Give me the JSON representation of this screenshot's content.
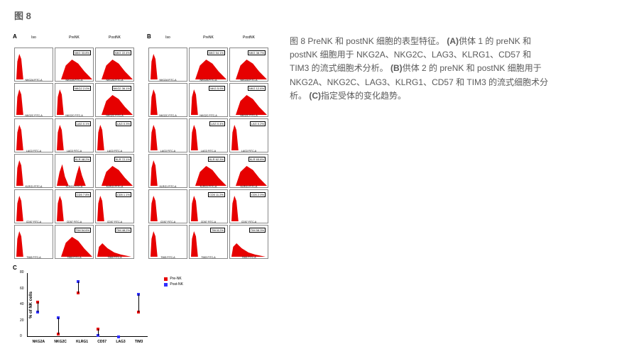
{
  "header": "图 8",
  "panelA": {
    "label": "A",
    "columns": [
      "Iso",
      "PreNK",
      "PostNK"
    ],
    "rows": [
      {
        "marker": "NKG2A",
        "gates": [
          "",
          "NKG 33.8%",
          "NKG 22.4%"
        ],
        "shapes": [
          "left",
          "shifted",
          "shifted"
        ]
      },
      {
        "marker": "NKG2C",
        "gates": [
          "",
          "NKG2 2.0%",
          "NKG2 36.1%"
        ],
        "shapes": [
          "left",
          "left",
          "shifted"
        ]
      },
      {
        "marker": "LAG3",
        "gates": [
          "",
          "LAG 0.1%",
          "LAG 0.3%"
        ],
        "shapes": [
          "left",
          "left",
          "left"
        ]
      },
      {
        "marker": "KLRG1",
        "gates": [
          "",
          "KLR 48.2%",
          "KLR 72.1%"
        ],
        "shapes": [
          "left",
          "double",
          "shifted"
        ]
      },
      {
        "marker": "CD57",
        "gates": [
          "",
          "CD5 7.8%",
          "CD5 1.1%"
        ],
        "shapes": [
          "left",
          "left",
          "left"
        ]
      },
      {
        "marker": "TIM3",
        "gates": [
          "",
          "TIM 54.6%",
          "TIM 48.2%"
        ],
        "shapes": [
          "left",
          "shifted",
          "broad"
        ]
      }
    ]
  },
  "panelB": {
    "label": "B",
    "columns": [
      "Iso",
      "PreNK",
      "PostNK"
    ],
    "rows": [
      {
        "marker": "NKG2A",
        "gates": [
          "",
          "NKG 54.1%",
          "NKG 38.7%"
        ],
        "shapes": [
          "left",
          "shifted",
          "shifted"
        ]
      },
      {
        "marker": "NKG2C",
        "gates": [
          "",
          "NKG 5.9%",
          "NKG 12.4%"
        ],
        "shapes": [
          "left",
          "left",
          "shifted"
        ]
      },
      {
        "marker": "LAG3",
        "gates": [
          "",
          "LAG 0.4%",
          "LAG 0.2%"
        ],
        "shapes": [
          "left",
          "left",
          "left"
        ]
      },
      {
        "marker": "KLRG1",
        "gates": [
          "",
          "KLR 62.3%",
          "KLR 65.8%"
        ],
        "shapes": [
          "left",
          "shifted",
          "shifted"
        ]
      },
      {
        "marker": "CD57",
        "gates": [
          "",
          "CD5 11.2%",
          "CD5 2.0%"
        ],
        "shapes": [
          "left",
          "left",
          "left"
        ]
      },
      {
        "marker": "TIM3",
        "gates": [
          "",
          "TIM 8.2%",
          "TIM 58.3%"
        ],
        "shapes": [
          "left",
          "left",
          "broad"
        ]
      }
    ]
  },
  "panelC": {
    "label": "C",
    "ylabel": "% of NK cells",
    "ylim": [
      0,
      80
    ],
    "ytick_step": 20,
    "categories": [
      "NKG2A",
      "NKG2C",
      "KLRG1",
      "CD57",
      "LAG3",
      "TIM3"
    ],
    "series": [
      {
        "name": "Pre-NK",
        "color": "#e60000",
        "marker": "square",
        "values": [
          44,
          4,
          55,
          10,
          0,
          31
        ]
      },
      {
        "name": "Post-NK",
        "color": "#3030ff",
        "marker": "square",
        "values": [
          31,
          24,
          69,
          2,
          0,
          53
        ]
      }
    ]
  },
  "caption": {
    "prefix": "图 8 PreNK 和 postNK 细胞的表型特征。",
    "a_label": "(A)",
    "a_text": "供体 1 的 preNK 和 postNK 细胞用于 NKG2A、NKG2C、LAG3、KLRG1、CD57 和 TIM3 的流式细胞术分析。",
    "b_label": "(B)",
    "b_text": "供体 2 的 preNK 和 postNK 细胞用于 NKG2A、NKG2C、LAG3、KLRG1、CD57 和 TIM3 的流式细胞术分析。",
    "c_label": "(C)",
    "c_text": "指定受体的变化趋势。"
  },
  "colors": {
    "histogram_fill": "#e60000",
    "background": "#ffffff",
    "text": "#5a5a5a",
    "axis": "#000000"
  }
}
